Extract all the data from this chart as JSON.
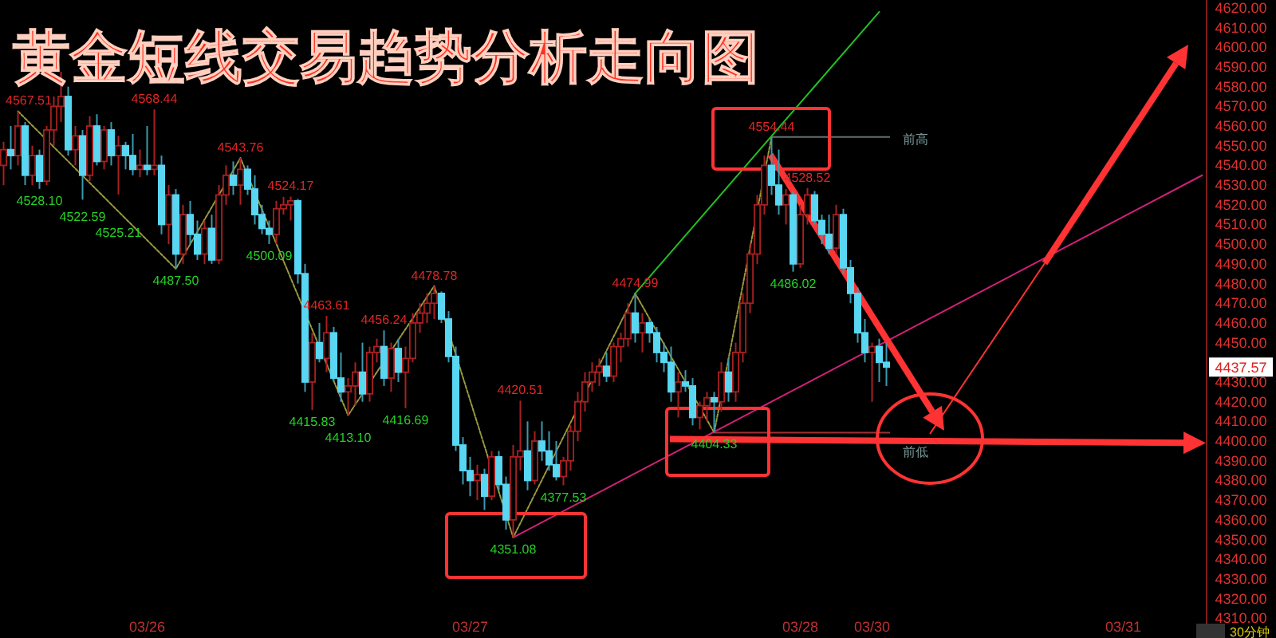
{
  "chart_data": {
    "type": "candlestick",
    "title": "黄金短线交易趋势分析走向图",
    "categories": [
      null,
      null,
      null,
      null,
      null,
      null,
      null,
      null,
      null,
      null,
      null,
      null,
      null,
      null,
      null,
      null,
      null,
      null,
      null,
      null,
      "03/26",
      null,
      null,
      null,
      null,
      null,
      null,
      null,
      null,
      null,
      null,
      null,
      null,
      null,
      null,
      null,
      null,
      null,
      null,
      null,
      null,
      null,
      null,
      null,
      null,
      null,
      null,
      null,
      null,
      null,
      null,
      null,
      null,
      null,
      null,
      null,
      null,
      null,
      null,
      null,
      null,
      null,
      null,
      null,
      null,
      "03/27",
      null,
      null,
      null,
      null,
      null,
      null,
      null,
      null,
      null,
      null,
      null,
      null,
      null,
      null,
      null,
      null,
      null,
      null,
      null,
      null,
      null,
      null,
      null,
      null,
      null,
      null,
      null,
      null,
      null,
      null,
      null,
      null,
      null,
      null,
      null,
      null,
      null,
      null,
      null,
      null,
      null,
      null,
      null,
      null,
      null,
      "03/28",
      null,
      null,
      null,
      null,
      null,
      null,
      null,
      null,
      null,
      "03/30",
      null,
      null,
      null,
      null,
      null,
      null,
      null,
      null,
      null,
      null,
      null,
      null,
      null,
      null,
      null,
      null,
      null,
      null,
      null,
      null,
      null,
      null,
      null,
      null,
      null,
      null,
      null,
      null,
      null,
      null,
      null,
      null,
      null,
      null,
      "03/31",
      null,
      null,
      null,
      null,
      null,
      null,
      null,
      null,
      null,
      null,
      null
    ],
    "ohlc": [
      [
        4540,
        4552,
        4530,
        4548
      ],
      [
        4548,
        4560,
        4538,
        4545
      ],
      [
        4545,
        4567.51,
        4540,
        4560
      ],
      [
        4560,
        4562,
        4530,
        4535
      ],
      [
        4535,
        4550,
        4530,
        4545
      ],
      [
        4545,
        4548,
        4528.1,
        4532
      ],
      [
        4532,
        4560,
        4530,
        4558
      ],
      [
        4558,
        4575,
        4550,
        4570
      ],
      [
        4570,
        4587.51,
        4562,
        4575
      ],
      [
        4575,
        4580,
        4545,
        4548
      ],
      [
        4548,
        4560,
        4540,
        4555
      ],
      [
        4555,
        4558,
        4522.59,
        4535
      ],
      [
        4535,
        4565,
        4532,
        4560
      ],
      [
        4560,
        4566,
        4540,
        4542
      ],
      [
        4542,
        4560,
        4538,
        4558
      ],
      [
        4558,
        4562,
        4540,
        4545
      ],
      [
        4545,
        4555,
        4525.21,
        4550
      ],
      [
        4550,
        4552,
        4538,
        4545
      ],
      [
        4545,
        4556,
        4535,
        4538
      ],
      [
        4538,
        4548,
        4534,
        4540
      ],
      [
        4540,
        4560,
        4535,
        4538
      ],
      [
        4538,
        4568.44,
        4535,
        4540
      ],
      [
        4540,
        4545,
        4505,
        4510
      ],
      [
        4510,
        4530,
        4500,
        4525
      ],
      [
        4525,
        4528,
        4487.5,
        4495
      ],
      [
        4495,
        4520,
        4490,
        4515
      ],
      [
        4515,
        4522,
        4500,
        4505
      ],
      [
        4505,
        4512,
        4492,
        4495
      ],
      [
        4495,
        4512,
        4490,
        4508
      ],
      [
        4508,
        4515,
        4490,
        4492
      ],
      [
        4492,
        4530,
        4490,
        4525
      ],
      [
        4525,
        4540,
        4520,
        4535
      ],
      [
        4535,
        4542,
        4525,
        4530
      ],
      [
        4530,
        4543.76,
        4520,
        4538
      ],
      [
        4538,
        4540,
        4525,
        4528
      ],
      [
        4528,
        4535,
        4510,
        4515
      ],
      [
        4515,
        4520,
        4505,
        4508
      ],
      [
        4508,
        4512,
        4500.09,
        4505
      ],
      [
        4505,
        4522,
        4500,
        4518
      ],
      [
        4518,
        4524,
        4515,
        4520
      ],
      [
        4520,
        4524.17,
        4512,
        4522
      ],
      [
        4522,
        4523,
        4480,
        4485
      ],
      [
        4485,
        4490,
        4425,
        4430
      ],
      [
        4430,
        4455,
        4415.83,
        4450
      ],
      [
        4450,
        4460,
        4440,
        4442
      ],
      [
        4442,
        4463.61,
        4435,
        4455
      ],
      [
        4455,
        4458,
        4430,
        4432
      ],
      [
        4432,
        4445,
        4420,
        4425
      ],
      [
        4425,
        4432,
        4413.1,
        4428
      ],
      [
        4428,
        4440,
        4418,
        4435
      ],
      [
        4435,
        4450,
        4420,
        4424
      ],
      [
        4424,
        4448,
        4420,
        4445
      ],
      [
        4445,
        4452,
        4440,
        4448
      ],
      [
        4448,
        4456.24,
        4428,
        4432
      ],
      [
        4432,
        4450,
        4425,
        4447
      ],
      [
        4447,
        4452,
        4430,
        4435
      ],
      [
        4435,
        4448,
        4416.69,
        4442
      ],
      [
        4442,
        4465,
        4440,
        4460
      ],
      [
        4460,
        4470,
        4455,
        4465
      ],
      [
        4465,
        4475,
        4460,
        4470
      ],
      [
        4470,
        4478.78,
        4462,
        4475
      ],
      [
        4475,
        4476,
        4460,
        4462
      ],
      [
        4462,
        4466,
        4440,
        4443
      ],
      [
        4443,
        4448,
        4395,
        4398
      ],
      [
        4398,
        4402,
        4378,
        4385
      ],
      [
        4385,
        4392,
        4372,
        4380
      ],
      [
        4380,
        4388,
        4370,
        4383
      ],
      [
        4383,
        4386,
        4365,
        4372
      ],
      [
        4372,
        4395,
        4370,
        4392
      ],
      [
        4392,
        4395,
        4375,
        4378
      ],
      [
        4378,
        4382,
        4355,
        4360
      ],
      [
        4360,
        4398,
        4351.08,
        4392
      ],
      [
        4392,
        4420.51,
        4385,
        4395
      ],
      [
        4395,
        4410,
        4375,
        4380
      ],
      [
        4380,
        4405,
        4378,
        4400
      ],
      [
        4400,
        4410,
        4390,
        4395
      ],
      [
        4395,
        4405,
        4385,
        4388
      ],
      [
        4388,
        4400,
        4380,
        4382
      ],
      [
        4382,
        4392,
        4377.53,
        4390
      ],
      [
        4390,
        4408,
        4385,
        4405
      ],
      [
        4405,
        4425,
        4400,
        4420
      ],
      [
        4420,
        4435,
        4415,
        4430
      ],
      [
        4430,
        4440,
        4425,
        4435
      ],
      [
        4435,
        4442,
        4428,
        4438
      ],
      [
        4438,
        4445,
        4430,
        4433
      ],
      [
        4433,
        4450,
        4430,
        4448
      ],
      [
        4448,
        4455,
        4440,
        4452
      ],
      [
        4452,
        4470,
        4448,
        4465
      ],
      [
        4465,
        4474.99,
        4450,
        4455
      ],
      [
        4455,
        4465,
        4445,
        4460
      ],
      [
        4460,
        4462,
        4450,
        4455
      ],
      [
        4455,
        4458,
        4440,
        4445
      ],
      [
        4445,
        4450,
        4435,
        4440
      ],
      [
        4440,
        4448,
        4420,
        4425
      ],
      [
        4425,
        4435,
        4412,
        4430
      ],
      [
        4430,
        4436,
        4425,
        4428
      ],
      [
        4428,
        4432,
        4408,
        4412
      ],
      [
        4412,
        4420,
        4406,
        4418
      ],
      [
        4418,
        4425,
        4410,
        4422
      ],
      [
        4422,
        4425,
        4404.33,
        4420
      ],
      [
        4420,
        4440,
        4415,
        4435
      ],
      [
        4435,
        4442,
        4420,
        4425
      ],
      [
        4425,
        4450,
        4420,
        4445
      ],
      [
        4445,
        4475,
        4440,
        4470
      ],
      [
        4470,
        4500,
        4465,
        4495
      ],
      [
        4495,
        4525,
        4490,
        4520
      ],
      [
        4520,
        4545,
        4515,
        4540
      ],
      [
        4540,
        4554.44,
        4525,
        4530
      ],
      [
        4530,
        4548,
        4515,
        4520
      ],
      [
        4520,
        4528,
        4510,
        4525
      ],
      [
        4525,
        4527,
        4486.02,
        4490
      ],
      [
        4490,
        4520,
        4488,
        4515
      ],
      [
        4515,
        4528.52,
        4510,
        4525
      ],
      [
        4525,
        4527,
        4510,
        4512
      ],
      [
        4512,
        4515,
        4500,
        4505
      ],
      [
        4505,
        4515,
        4495,
        4498
      ],
      [
        4498,
        4520,
        4495,
        4515
      ],
      [
        4515,
        4518,
        4485,
        4488
      ],
      [
        4488,
        4492,
        4470,
        4475
      ],
      [
        4475,
        4478,
        4450,
        4455
      ],
      [
        4455,
        4462,
        4440,
        4445
      ],
      [
        4445,
        4450,
        4420,
        4448
      ],
      [
        4448,
        4452,
        4430,
        4440
      ],
      [
        4440,
        4450,
        4428,
        4437.57
      ],
      null,
      null,
      null,
      null,
      null,
      null,
      null,
      null,
      null,
      null,
      null,
      null,
      null,
      null,
      null,
      null,
      null,
      null,
      null,
      null,
      null,
      null,
      null,
      null,
      null,
      null,
      null,
      null,
      null,
      null,
      null,
      null,
      null,
      null,
      null,
      null,
      null,
      null,
      null,
      null,
      null,
      null,
      null,
      null
    ],
    "series": [
      {
        "type": "line",
        "color": "#9a9a40",
        "line_style": "dotted",
        "values": [
          null,
          null,
          4567.51,
          null,
          null,
          null,
          null,
          null,
          null,
          null,
          null,
          null,
          null,
          null,
          null,
          null,
          null,
          null,
          null,
          null,
          null,
          null,
          null,
          null,
          4487.5,
          null,
          null,
          null,
          null,
          null,
          null,
          null,
          null,
          4543.76,
          null,
          null,
          null,
          null,
          null,
          null,
          null,
          null,
          null,
          null,
          null,
          null,
          null,
          null,
          4413.1,
          null,
          null,
          null,
          null,
          null,
          null,
          null,
          null,
          null,
          null,
          null,
          4478.78,
          null,
          null,
          null,
          null,
          null,
          null,
          null,
          null,
          null,
          null,
          4351.08,
          null,
          null,
          null,
          null,
          null,
          null,
          null,
          null,
          null,
          null,
          null,
          null,
          null,
          null,
          null,
          null,
          4474.99,
          null,
          null,
          null,
          null,
          null,
          null,
          null,
          null,
          null,
          null,
          4404.33,
          null,
          null,
          null,
          null,
          null,
          null,
          null,
          4554.44,
          null,
          null,
          null,
          null,
          null,
          null,
          null,
          null,
          null,
          null,
          null,
          null,
          null,
          null,
          null,
          null,
          null,
          null,
          null,
          null,
          null,
          null,
          null,
          null,
          null,
          null,
          null,
          null,
          null,
          null,
          null,
          null,
          null,
          null,
          null,
          null,
          null,
          null,
          null,
          null,
          null,
          null,
          null,
          null,
          null,
          null,
          null,
          null,
          null,
          null,
          null,
          null,
          null,
          null,
          null,
          null,
          null,
          null,
          null,
          null
        ]
      },
      {
        "type": "line",
        "color": "#22c022",
        "line_style": "solid",
        "values": [
          null,
          null,
          null,
          null,
          null,
          null,
          null,
          null,
          null,
          null,
          null,
          null,
          null,
          null,
          null,
          null,
          null,
          null,
          null,
          null,
          null,
          null,
          null,
          null,
          null,
          null,
          null,
          null,
          null,
          null,
          null,
          null,
          null,
          null,
          null,
          null,
          null,
          null,
          null,
          null,
          null,
          null,
          null,
          null,
          null,
          null,
          null,
          null,
          null,
          null,
          null,
          null,
          null,
          null,
          null,
          null,
          null,
          null,
          null,
          null,
          null,
          null,
          null,
          null,
          null,
          null,
          null,
          null,
          null,
          null,
          null,
          null,
          null,
          null,
          null,
          null,
          null,
          null,
          null,
          null,
          null,
          null,
          null,
          null,
          null,
          null,
          null,
          null,
          4474.99,
          null,
          null,
          null,
          null,
          null,
          null,
          null,
          null,
          null,
          null,
          null,
          null,
          null,
          null,
          null,
          null,
          null,
          null,
          null,
          null,
          null,
          null,
          null,
          null,
          null,
          null,
          null,
          null,
          null,
          null,
          null,
          null,
          null,
          4618,
          null,
          null,
          null,
          null,
          null,
          null,
          null,
          null,
          null,
          null,
          null,
          null,
          null,
          null,
          null,
          null,
          null,
          null,
          null,
          null,
          null,
          null,
          null,
          null,
          null,
          null,
          null,
          null,
          null,
          null,
          null,
          null,
          null,
          null,
          null,
          null,
          null,
          null,
          null,
          null,
          null,
          null,
          null,
          null,
          null
        ]
      },
      {
        "type": "line",
        "color": "#d0207a",
        "line_style": "solid",
        "values": [
          null,
          null,
          null,
          null,
          null,
          null,
          null,
          null,
          null,
          null,
          null,
          null,
          null,
          null,
          null,
          null,
          null,
          null,
          null,
          null,
          null,
          null,
          null,
          null,
          null,
          null,
          null,
          null,
          null,
          null,
          null,
          null,
          null,
          null,
          null,
          null,
          null,
          null,
          null,
          null,
          null,
          null,
          null,
          null,
          null,
          null,
          null,
          null,
          null,
          null,
          null,
          null,
          null,
          null,
          null,
          null,
          null,
          null,
          null,
          null,
          null,
          null,
          null,
          null,
          null,
          null,
          null,
          null,
          null,
          null,
          null,
          4351.08,
          null,
          null,
          null,
          null,
          null,
          null,
          null,
          null,
          null,
          null,
          null,
          null,
          null,
          null,
          null,
          null,
          null,
          null,
          null,
          null,
          null,
          null,
          null,
          null,
          null,
          null,
          null,
          null,
          null,
          null,
          null,
          null,
          null,
          null,
          null,
          null,
          null,
          null,
          null,
          null,
          null,
          null,
          null,
          null,
          null,
          null,
          null,
          null,
          null,
          null,
          null,
          null,
          null,
          null,
          null,
          null,
          null,
          null,
          null,
          null,
          null,
          null,
          null,
          null,
          null,
          null,
          null,
          null,
          null,
          null,
          null,
          null,
          null,
          null,
          null,
          null,
          null,
          null,
          null,
          null,
          null,
          null,
          null,
          null,
          null,
          null,
          null,
          null,
          null,
          null,
          null,
          null,
          null,
          null,
          null,
          4535
        ]
      }
    ],
    "ref_lines": [
      {
        "axis": "y",
        "value": 4554.44,
        "label": "前高",
        "color": "#607070"
      },
      {
        "axis": "y",
        "value": 4404.33,
        "label": "前低",
        "color": "#a03030"
      }
    ],
    "annotations": [
      {
        "text": "4567.51",
        "y": 4567.51
      },
      {
        "text": "4528.10",
        "y": 4528.1
      },
      {
        "text": "4522.59",
        "y": 4522.59
      },
      {
        "text": "4525.21",
        "y": 4525.21
      },
      {
        "text": "4568.44",
        "y": 4568.44
      },
      {
        "text": "4487.50",
        "y": 4487.5
      },
      {
        "text": "4543.76",
        "y": 4543.76
      },
      {
        "text": "4500.09",
        "y": 4500.09
      },
      {
        "text": "4524.17",
        "y": 4524.17
      },
      {
        "text": "4463.61",
        "y": 4463.61
      },
      {
        "text": "4415.83",
        "y": 4415.83
      },
      {
        "text": "4413.10",
        "y": 4413.1
      },
      {
        "text": "4456.24",
        "y": 4456.24
      },
      {
        "text": "4416.69",
        "y": 4416.69
      },
      {
        "text": "4478.78",
        "y": 4478.78
      },
      {
        "text": "4351.08",
        "y": 4351.08
      },
      {
        "text": "4420.51",
        "y": 4420.51
      },
      {
        "text": "4377.53",
        "y": 4377.53
      },
      {
        "text": "4474.99",
        "y": 4474.99
      },
      {
        "text": "4404.33",
        "y": 4404.33
      },
      {
        "text": "4554.44",
        "y": 4554.44
      },
      {
        "text": "4528.52",
        "y": 4528.52
      },
      {
        "text": "4486.02",
        "y": 4486.02
      },
      {
        "text": "4437.57",
        "y": 4437.57
      },
      "30分钟"
    ],
    "ylim": [
      4300,
      4624
    ],
    "yticks": [
      {
        "value": 4310,
        "label": "4310.00"
      },
      {
        "value": 4320,
        "label": "4320.00"
      },
      {
        "value": 4330,
        "label": "4330.00"
      },
      {
        "value": 4340,
        "label": "4340.00"
      },
      {
        "value": 4350,
        "label": "4350.00"
      },
      {
        "value": 4360,
        "label": "4360.00"
      },
      {
        "value": 4370,
        "label": "4370.00"
      },
      {
        "value": 4380,
        "label": "4380.00"
      },
      {
        "value": 4390,
        "label": "4390.00"
      },
      {
        "value": 4400,
        "label": "4400.00"
      },
      {
        "value": 4410,
        "label": "4410.00"
      },
      {
        "value": 4420,
        "label": "4420.00"
      },
      {
        "value": 4430,
        "label": "4430.00"
      },
      {
        "value": 4450,
        "label": "4450.00"
      },
      {
        "value": 4460,
        "label": "4460.00"
      },
      {
        "value": 4470,
        "label": "4470.00"
      },
      {
        "value": 4480,
        "label": "4480.00"
      },
      {
        "value": 4490,
        "label": "4490.00"
      },
      {
        "value": 4500,
        "label": "4500.00"
      },
      {
        "value": 4510,
        "label": "4510.00"
      },
      {
        "value": 4520,
        "label": "4520.00"
      },
      {
        "value": 4530,
        "label": "4530.00"
      },
      {
        "value": 4540,
        "label": "4540.00"
      },
      {
        "value": 4550,
        "label": "4550.00"
      },
      {
        "value": 4560,
        "label": "4560.00"
      },
      {
        "value": 4570,
        "label": "4570.00"
      },
      {
        "value": 4580,
        "label": "4580.00"
      },
      {
        "value": 4590,
        "label": "4590.00"
      },
      {
        "value": 4600,
        "label": "4600.00"
      },
      {
        "value": 4610,
        "label": "4610.00"
      },
      {
        "value": 4620,
        "label": "4620.00"
      }
    ]
  }
}
